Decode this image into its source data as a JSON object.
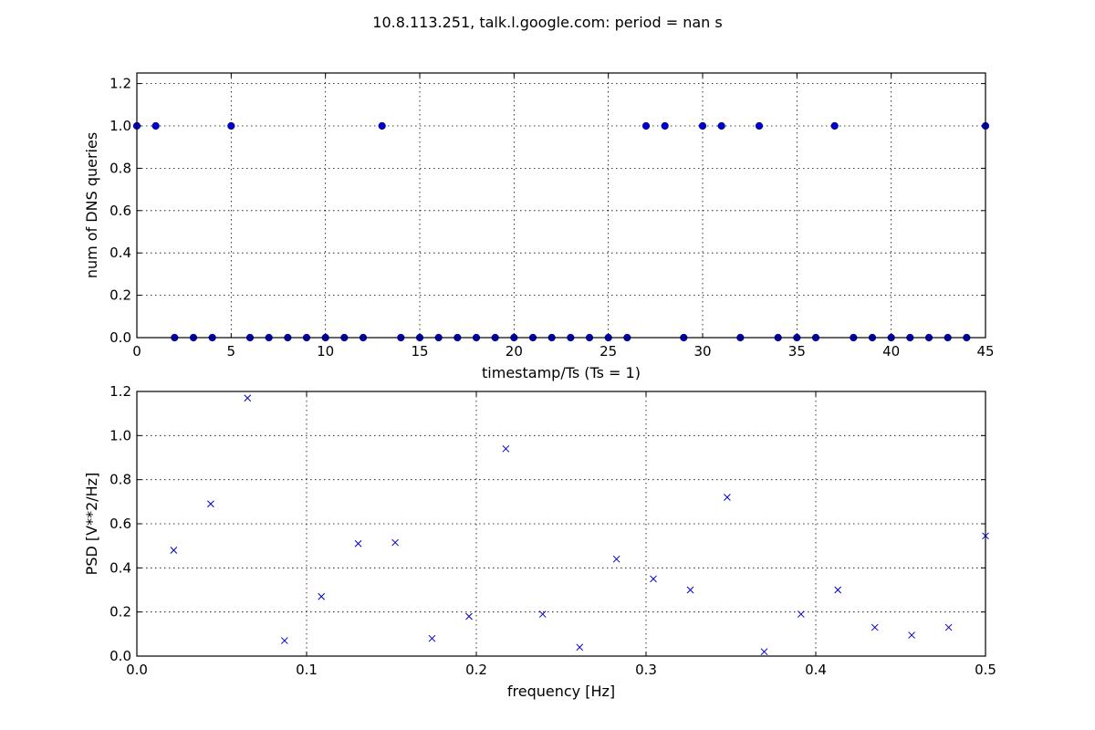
{
  "figure": {
    "title": "10.8.113.251, talk.l.google.com: period = nan s"
  },
  "colors": {
    "series": "#0000cc",
    "axes": "#000000",
    "background": "#ffffff"
  },
  "chart_data": [
    {
      "type": "scatter",
      "marker": "filled-circle",
      "xlabel": "timestamp/Ts (Ts = 1)",
      "ylabel": "num of DNS queries",
      "xlim": [
        0,
        45
      ],
      "ylim": [
        0,
        1.25
      ],
      "xticks": [
        0,
        5,
        10,
        15,
        20,
        25,
        30,
        35,
        40,
        45
      ],
      "xtick_labels": [
        "0",
        "5",
        "10",
        "15",
        "20",
        "25",
        "30",
        "35",
        "40",
        "45"
      ],
      "yticks": [
        0,
        0.2,
        0.4,
        0.6,
        0.8,
        1.0,
        1.2
      ],
      "ytick_labels": [
        "0.0",
        "0.2",
        "0.4",
        "0.6",
        "0.8",
        "1.0",
        "1.2"
      ],
      "grid": true,
      "x": [
        0,
        1,
        2,
        3,
        4,
        5,
        6,
        7,
        8,
        9,
        10,
        11,
        12,
        13,
        14,
        15,
        16,
        17,
        18,
        19,
        20,
        21,
        22,
        23,
        24,
        25,
        26,
        27,
        28,
        29,
        30,
        31,
        32,
        33,
        34,
        35,
        36,
        37,
        38,
        39,
        40,
        41,
        42,
        43,
        44,
        45
      ],
      "y": [
        1,
        1,
        0,
        0,
        0,
        1,
        0,
        0,
        0,
        0,
        0,
        0,
        0,
        1,
        0,
        0,
        0,
        0,
        0,
        0,
        0,
        0,
        0,
        0,
        0,
        0,
        0,
        1,
        1,
        0,
        1,
        1,
        0,
        1,
        0,
        0,
        0,
        1,
        0,
        0,
        0,
        0,
        0,
        0,
        0,
        1
      ]
    },
    {
      "type": "scatter",
      "marker": "x",
      "xlabel": "frequency [Hz]",
      "ylabel": "PSD [V**2/Hz]",
      "xlim": [
        0,
        0.5
      ],
      "ylim": [
        0,
        1.2
      ],
      "xticks": [
        0,
        0.1,
        0.2,
        0.3,
        0.4,
        0.5
      ],
      "xtick_labels": [
        "0.0",
        "0.1",
        "0.2",
        "0.3",
        "0.4",
        "0.5"
      ],
      "yticks": [
        0,
        0.2,
        0.4,
        0.6,
        0.8,
        1.0,
        1.2
      ],
      "ytick_labels": [
        "0.0",
        "0.2",
        "0.4",
        "0.6",
        "0.8",
        "1.0",
        "1.2"
      ],
      "grid": true,
      "x": [
        0.0217,
        0.0435,
        0.0652,
        0.087,
        0.1087,
        0.1304,
        0.1522,
        0.1739,
        0.1957,
        0.2174,
        0.2391,
        0.2609,
        0.2826,
        0.3043,
        0.3261,
        0.3478,
        0.3696,
        0.3913,
        0.413,
        0.4348,
        0.4565,
        0.4783,
        0.5
      ],
      "y": [
        0.48,
        0.69,
        1.17,
        0.07,
        0.27,
        0.51,
        0.515,
        0.08,
        0.18,
        0.94,
        0.19,
        0.04,
        0.44,
        0.35,
        0.3,
        0.72,
        0.02,
        0.19,
        0.3,
        0.13,
        0.095,
        0.13,
        0.545
      ]
    }
  ]
}
